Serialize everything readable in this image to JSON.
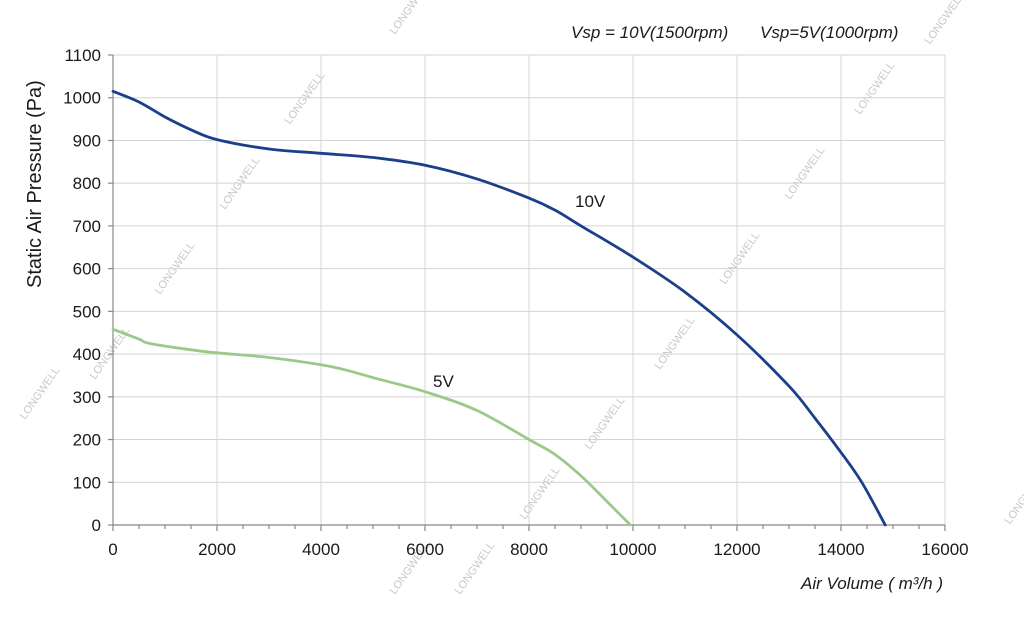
{
  "chart_data": {
    "type": "line",
    "title": "",
    "legend_text": [
      "Vsp = 10V(1500rpm)",
      "Vsp=5V(1000rpm)"
    ],
    "xlabel": "Air Volume ( m³/h )",
    "ylabel": "Static Air Pressure  (Pa)",
    "xlim": [
      0,
      16000
    ],
    "ylim": [
      0,
      1100
    ],
    "x_ticks": [
      0,
      2000,
      4000,
      6000,
      8000,
      10000,
      12000,
      14000,
      16000
    ],
    "y_ticks": [
      0,
      100,
      200,
      300,
      400,
      500,
      600,
      700,
      800,
      900,
      1000,
      1100
    ],
    "grid": true,
    "series": [
      {
        "name": "10V",
        "color": "#1b3f8b",
        "points": [
          [
            0,
            1015
          ],
          [
            500,
            990
          ],
          [
            1000,
            955
          ],
          [
            1500,
            925
          ],
          [
            2000,
            902
          ],
          [
            3000,
            880
          ],
          [
            4000,
            870
          ],
          [
            5000,
            860
          ],
          [
            6000,
            842
          ],
          [
            7000,
            810
          ],
          [
            8000,
            765
          ],
          [
            8500,
            737
          ],
          [
            9000,
            700
          ],
          [
            10000,
            627
          ],
          [
            11000,
            545
          ],
          [
            12000,
            445
          ],
          [
            13000,
            325
          ],
          [
            13500,
            250
          ],
          [
            14000,
            170
          ],
          [
            14400,
            100
          ],
          [
            14850,
            0
          ]
        ]
      },
      {
        "name": "5V",
        "color": "#9cc98a",
        "points": [
          [
            0,
            458
          ],
          [
            500,
            435
          ],
          [
            700,
            425
          ],
          [
            1500,
            410
          ],
          [
            2000,
            403
          ],
          [
            3000,
            392
          ],
          [
            4000,
            375
          ],
          [
            4500,
            362
          ],
          [
            5000,
            345
          ],
          [
            6000,
            312
          ],
          [
            7000,
            268
          ],
          [
            8000,
            200
          ],
          [
            8500,
            165
          ],
          [
            9000,
            115
          ],
          [
            9500,
            55
          ],
          [
            9950,
            0
          ]
        ]
      }
    ],
    "watermark_text": "LONGWELL"
  }
}
